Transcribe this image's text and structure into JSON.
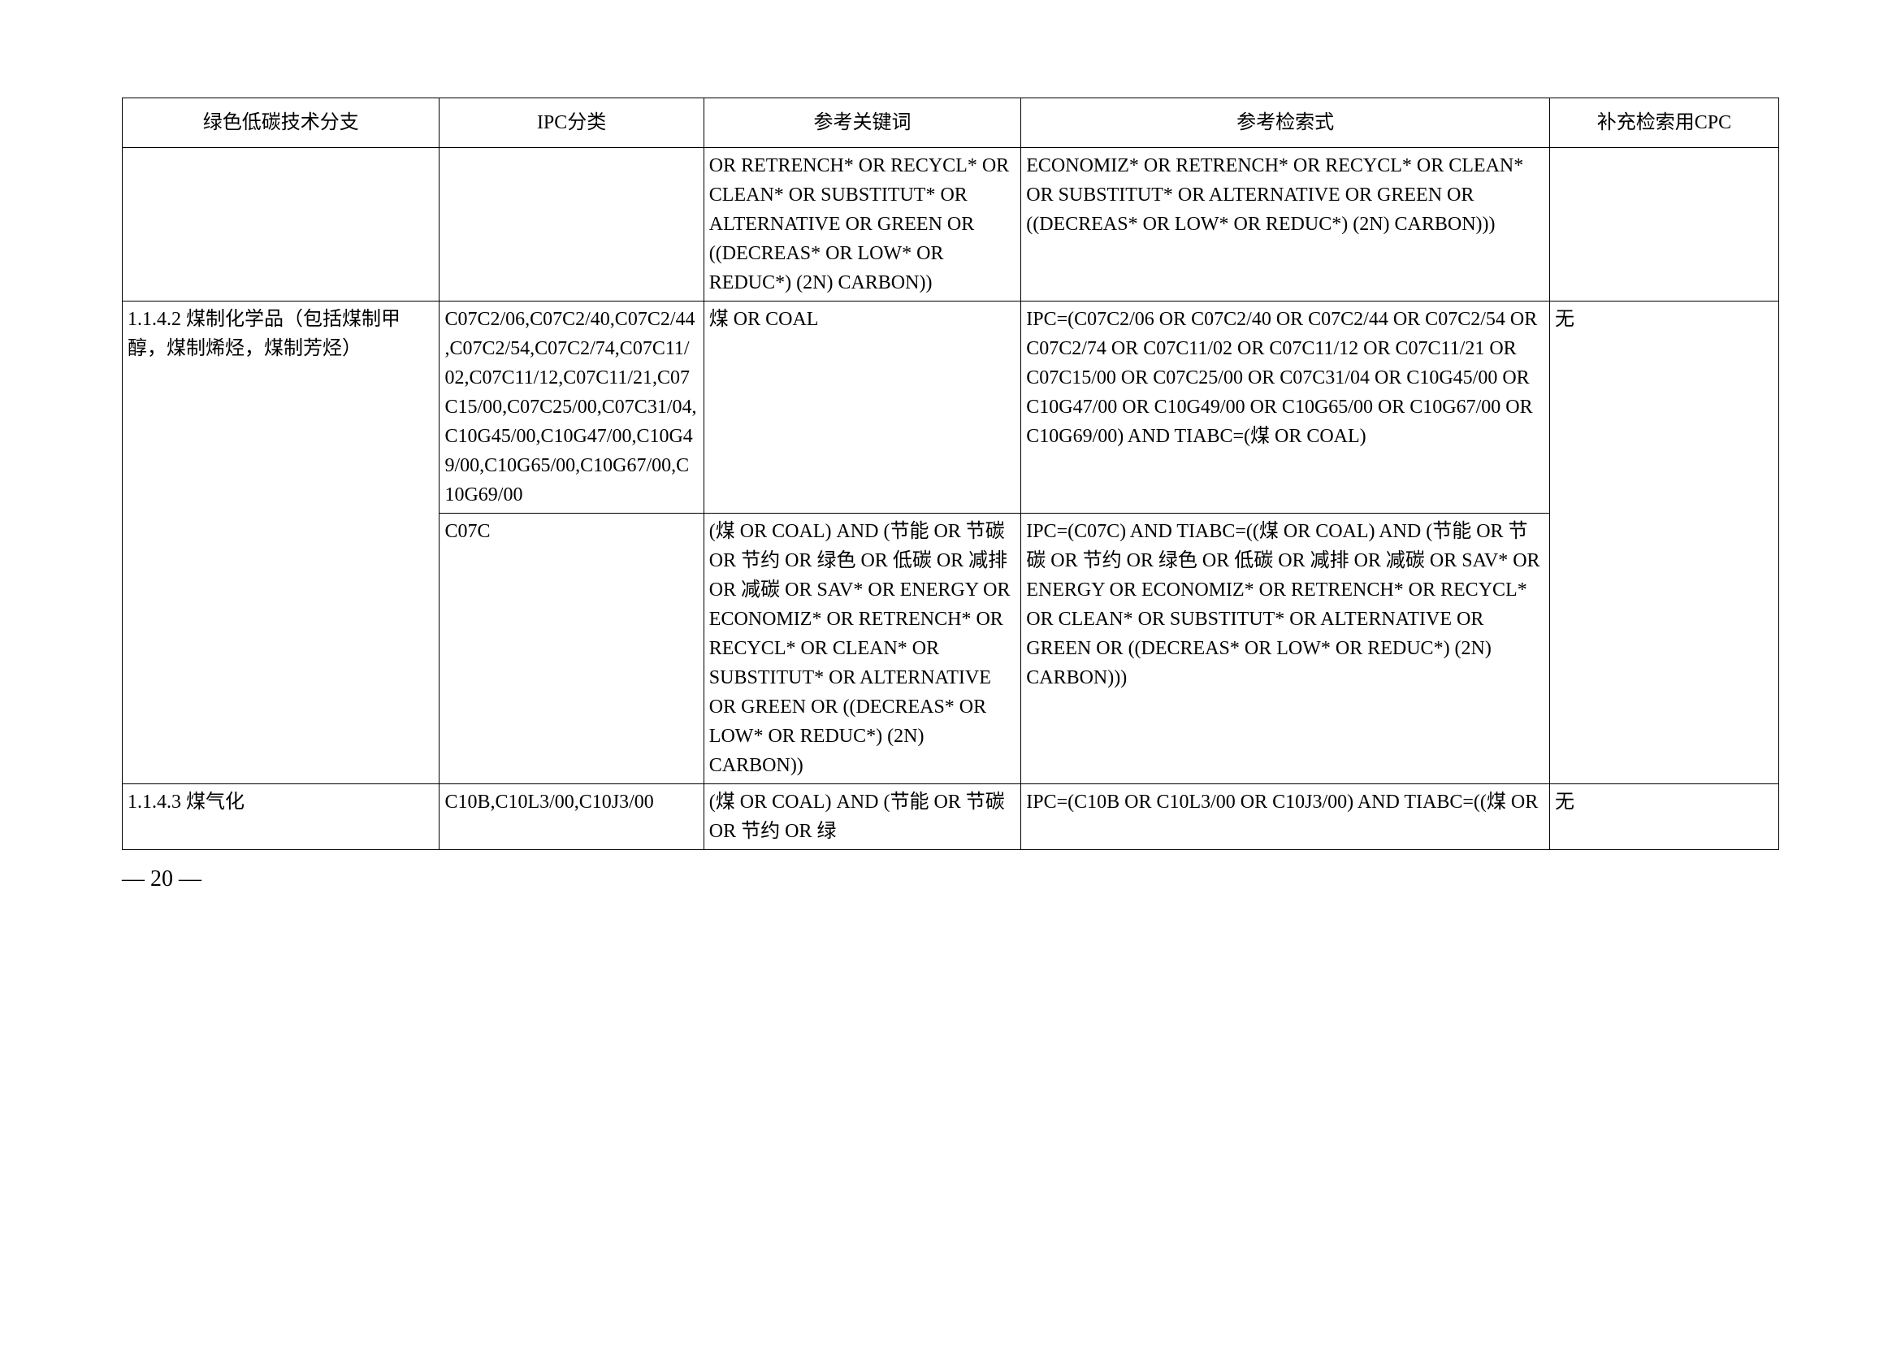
{
  "headers": {
    "col1": "绿色低碳技术分支",
    "col2": "IPC分类",
    "col3": "参考关键词",
    "col4": "参考检索式",
    "col5": "补充检索用CPC"
  },
  "rows": [
    {
      "branch": "",
      "ipc": "",
      "keywords": "OR RETRENCH* OR RECYCL* OR CLEAN* OR SUBSTITUT* OR ALTERNATIVE OR GREEN OR ((DECREAS* OR LOW* OR REDUC*) (2N) CARBON))",
      "search": "ECONOMIZ* OR RETRENCH* OR RECYCL* OR CLEAN* OR SUBSTITUT* OR ALTERNATIVE OR GREEN OR ((DECREAS* OR LOW* OR REDUC*) (2N) CARBON)))",
      "cpc": ""
    },
    {
      "branch": "1.1.4.2 煤制化学品（包括煤制甲醇，煤制烯烃，煤制芳烃）",
      "ipc": "C07C2/06,C07C2/40,C07C2/44,C07C2/54,C07C2/74,C07C11/02,C07C11/12,C07C11/21,C07C15/00,C07C25/00,C07C31/04,C10G45/00,C10G47/00,C10G49/00,C10G65/00,C10G67/00,C10G69/00",
      "keywords": "煤  OR COAL",
      "search": "IPC=(C07C2/06 OR C07C2/40 OR C07C2/44 OR C07C2/54 OR C07C2/74 OR C07C11/02 OR C07C11/12 OR C07C11/21 OR C07C15/00 OR C07C25/00 OR C07C31/04 OR C10G45/00 OR C10G47/00 OR C10G49/00 OR C10G65/00 OR C10G67/00 OR C10G69/00) AND TIABC=(煤  OR COAL)",
      "cpc": "无"
    },
    {
      "branch": "",
      "ipc": "C07C",
      "keywords": "(煤  OR COAL) AND (节能 OR 节碳 OR 节约 OR 绿色 OR 低碳 OR 减排 OR 减碳  OR SAV* OR ENERGY OR ECONOMIZ* OR RETRENCH* OR RECYCL* OR CLEAN* OR SUBSTITUT* OR ALTERNATIVE OR GREEN OR ((DECREAS* OR LOW* OR REDUC*) (2N) CARBON))",
      "search": "IPC=(C07C) AND TIABC=((煤  OR COAL) AND (节能 OR 节碳 OR 节约 OR 绿色 OR 低碳 OR 减排 OR 减碳  OR SAV* OR ENERGY OR ECONOMIZ* OR RETRENCH* OR RECYCL* OR CLEAN* OR SUBSTITUT* OR ALTERNATIVE OR GREEN OR ((DECREAS* OR LOW* OR REDUC*) (2N) CARBON)))",
      "cpc": ""
    },
    {
      "branch": "1.1.4.3 煤气化",
      "ipc": "C10B,C10L3/00,C10J3/00",
      "keywords": "(煤  OR COAL) AND (节能 OR 节碳 OR 节约 OR 绿",
      "search": "IPC=(C10B OR C10L3/00 OR C10J3/00) AND TIABC=((煤  OR",
      "cpc": "无"
    }
  ],
  "pageNumber": "— 20 —",
  "styling": {
    "background_color": "#ffffff",
    "border_color": "#000000",
    "font_size": 24,
    "header_font_size": 24,
    "page_number_font_size": 28,
    "line_height": 1.5,
    "font_family_cjk": "SimSun",
    "font_family_latin": "Times New Roman"
  }
}
